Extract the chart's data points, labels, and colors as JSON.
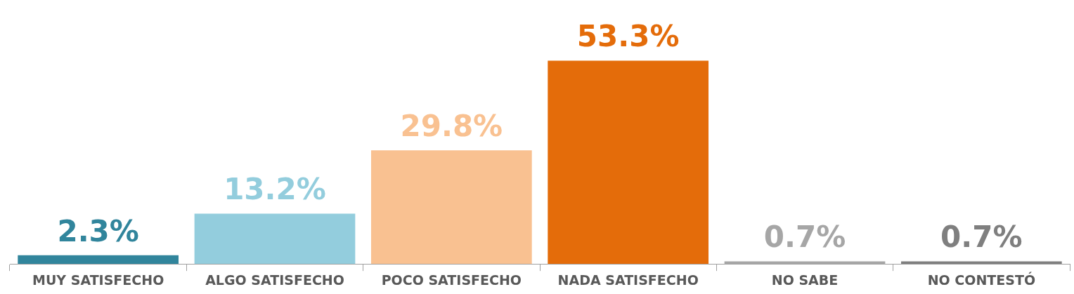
{
  "chart_data": {
    "type": "bar",
    "categories": [
      "MUY SATISFECHO",
      "ALGO SATISFECHO",
      "POCO SATISFECHO",
      "NADA SATISFECHO",
      "NO SABE",
      "NO CONTESTÓ"
    ],
    "values": [
      2.3,
      13.2,
      29.8,
      53.3,
      0.7,
      0.7
    ],
    "value_labels": [
      "2.3%",
      "13.2%",
      "29.8%",
      "53.3%",
      "0.7%",
      "0.7%"
    ],
    "colors": [
      "#31859c",
      "#93cddd",
      "#f9c191",
      "#e46c0a",
      "#a6a6a6",
      "#7f7f7f"
    ],
    "grid": false,
    "legend": false
  }
}
